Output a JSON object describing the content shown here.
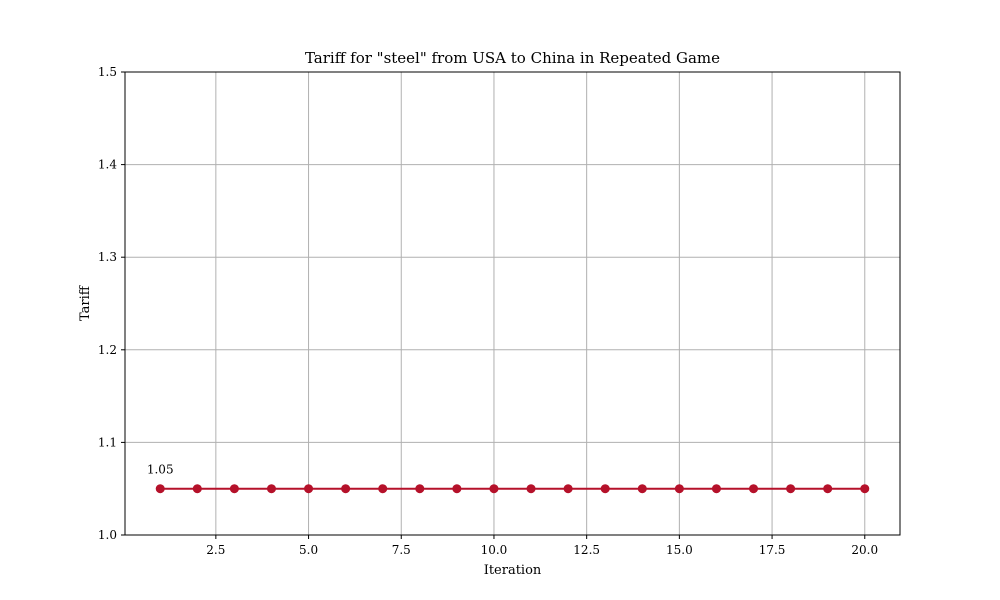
{
  "chart_data": {
    "type": "line",
    "title": "Tariff for \"steel\" from USA to China in Repeated Game",
    "xlabel": "Iteration",
    "ylabel": "Tariff",
    "xlim": [
      0.05,
      20.95
    ],
    "ylim": [
      1.0,
      1.5
    ],
    "xticks": [
      2.5,
      5.0,
      7.5,
      10.0,
      12.5,
      15.0,
      17.5,
      20.0
    ],
    "xtick_labels": [
      "2.5",
      "5.0",
      "7.5",
      "10.0",
      "12.5",
      "15.0",
      "17.5",
      "20.0"
    ],
    "yticks": [
      1.0,
      1.1,
      1.2,
      1.3,
      1.4,
      1.5
    ],
    "ytick_labels": [
      "1.0",
      "1.1",
      "1.2",
      "1.3",
      "1.4",
      "1.5"
    ],
    "grid": true,
    "series": [
      {
        "color": "#b5112a",
        "x": [
          1,
          2,
          3,
          4,
          5,
          6,
          7,
          8,
          9,
          10,
          11,
          12,
          13,
          14,
          15,
          16,
          17,
          18,
          19,
          20
        ],
        "values": [
          1.05,
          1.05,
          1.05,
          1.05,
          1.05,
          1.05,
          1.05,
          1.05,
          1.05,
          1.05,
          1.05,
          1.05,
          1.05,
          1.05,
          1.05,
          1.05,
          1.05,
          1.05,
          1.05,
          1.05
        ]
      }
    ],
    "annotations": [
      {
        "x": 1,
        "y": 1.05,
        "text": "1.05"
      }
    ]
  }
}
